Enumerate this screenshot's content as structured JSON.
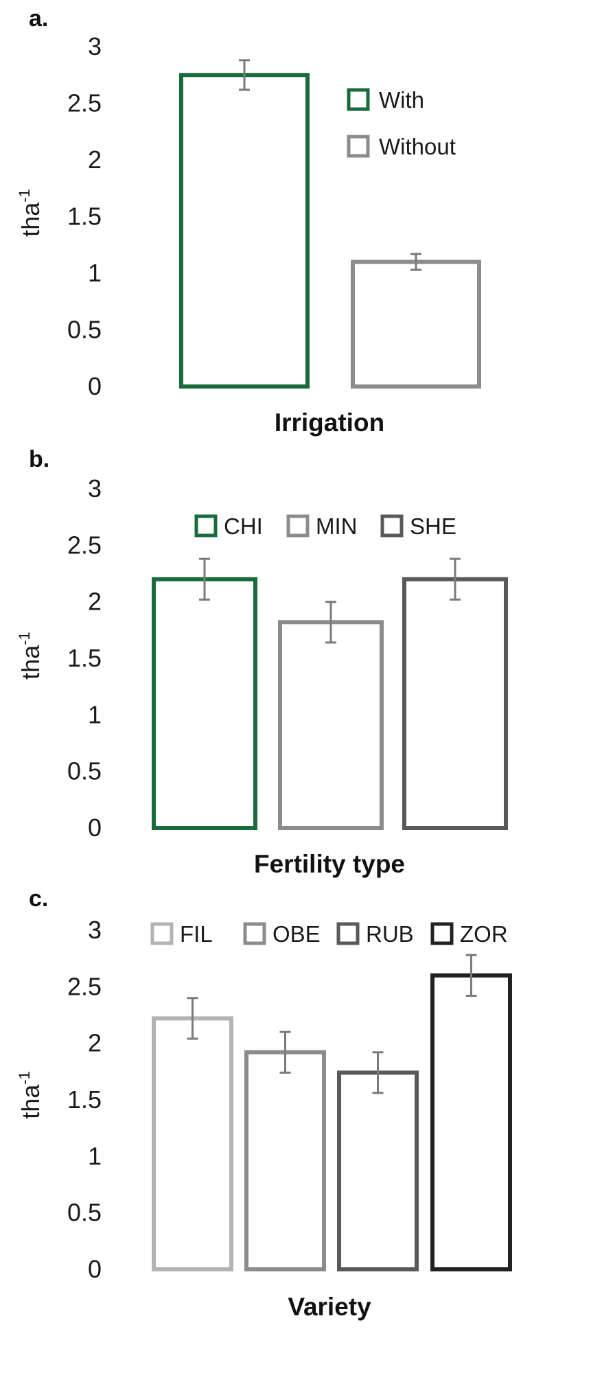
{
  "chart_data": [
    {
      "type": "bar",
      "panel_label": "a.",
      "xlabel": "Irrigation",
      "ylabel_base": "tha",
      "ylabel_sup": "-1",
      "ylim": [
        0,
        3
      ],
      "yticks": [
        "0",
        "0.5",
        "1",
        "1.5",
        "2",
        "2.5",
        "3"
      ],
      "legend_position": "top-right",
      "series": [
        {
          "name": "With",
          "value": 2.75,
          "error": 0.13,
          "color": "#1a6b3c"
        },
        {
          "name": "Without",
          "value": 1.1,
          "error": 0.07,
          "color": "#8c8c8c"
        }
      ]
    },
    {
      "type": "bar",
      "panel_label": "b.",
      "xlabel": "Fertility type",
      "ylabel_base": "tha",
      "ylabel_sup": "-1",
      "ylim": [
        0,
        3
      ],
      "yticks": [
        "0",
        "0.5",
        "1",
        "1.5",
        "2",
        "2.5",
        "3"
      ],
      "legend_position": "top",
      "series": [
        {
          "name": "CHI",
          "value": 2.2,
          "error": 0.18,
          "color": "#1a6b3c"
        },
        {
          "name": "MIN",
          "value": 1.82,
          "error": 0.18,
          "color": "#8c8c8c"
        },
        {
          "name": "SHE",
          "value": 2.2,
          "error": 0.18,
          "color": "#595959"
        }
      ]
    },
    {
      "type": "bar",
      "panel_label": "c.",
      "xlabel": "Variety",
      "ylabel_base": "tha",
      "ylabel_sup": "-1",
      "ylim": [
        0,
        3
      ],
      "yticks": [
        "0",
        "0.5",
        "1",
        "1.5",
        "2",
        "2.5",
        "3"
      ],
      "legend_position": "top",
      "series": [
        {
          "name": "FIL",
          "value": 2.22,
          "error": 0.18,
          "color": "#b3b3b3"
        },
        {
          "name": "OBE",
          "value": 1.92,
          "error": 0.18,
          "color": "#8c8c8c"
        },
        {
          "name": "RUB",
          "value": 1.74,
          "error": 0.18,
          "color": "#595959"
        },
        {
          "name": "ZOR",
          "value": 2.6,
          "error": 0.18,
          "color": "#222222"
        }
      ]
    }
  ]
}
